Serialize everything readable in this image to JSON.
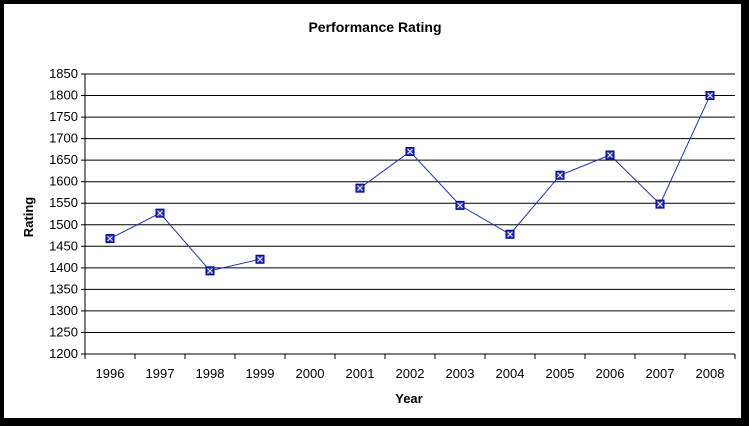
{
  "chart_data": {
    "type": "line",
    "title": "Performance Rating",
    "xlabel": "Year",
    "ylabel": "Rating",
    "categories": [
      "1996",
      "1997",
      "1998",
      "1999",
      "2000",
      "2001",
      "2002",
      "2003",
      "2004",
      "2005",
      "2006",
      "2007",
      "2008"
    ],
    "series": [
      {
        "values": [
          1468,
          1527,
          1393,
          1420,
          null,
          1585,
          1670,
          1545,
          1478,
          1615,
          1662,
          1548,
          1800
        ]
      }
    ],
    "ylim": [
      1200,
      1850
    ],
    "yticks": [
      1200,
      1250,
      1300,
      1350,
      1400,
      1450,
      1500,
      1550,
      1600,
      1650,
      1700,
      1750,
      1800,
      1850
    ],
    "grid": true,
    "legend": "none",
    "colors": {
      "line": "#1f2fbf",
      "marker_fill": "#2233cc",
      "marker_border": "#000080",
      "marker_cross": "#ffffff",
      "grid": "#000000",
      "background": "#ffffff",
      "outer_border": "#000000"
    }
  }
}
